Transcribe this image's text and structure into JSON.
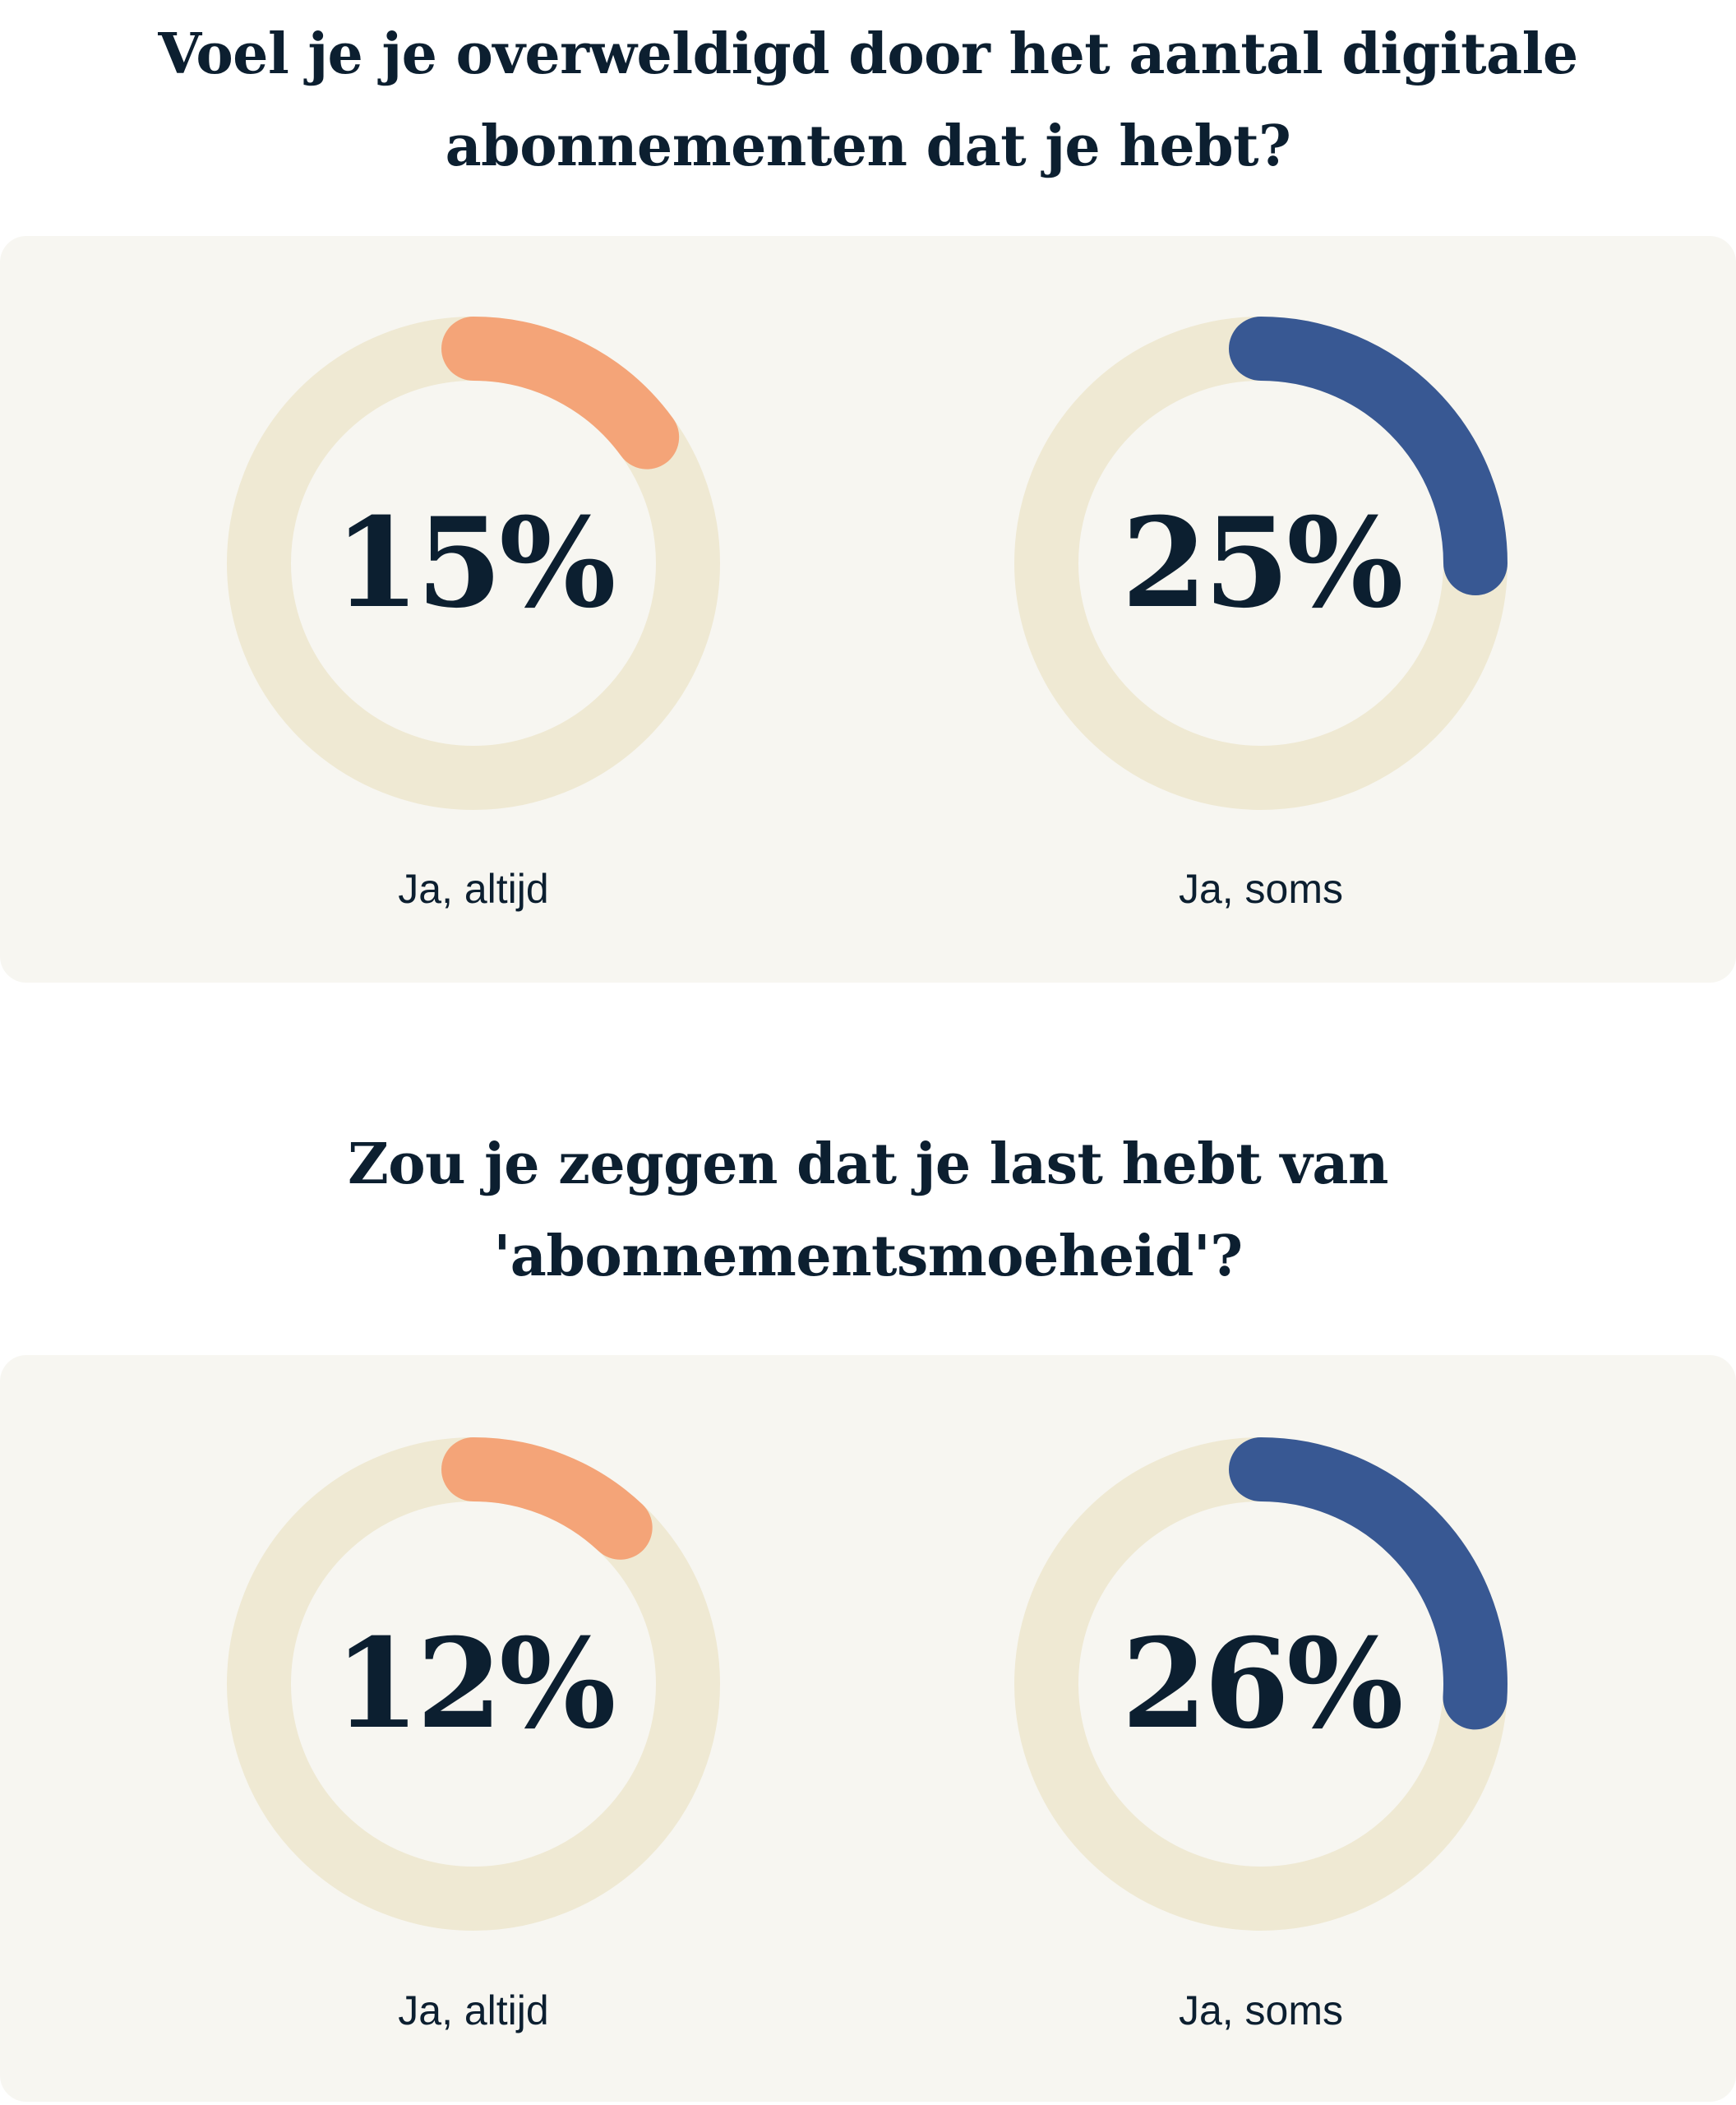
{
  "colors": {
    "background": "#f7f6f1",
    "track": "#efe9d3",
    "altijd": "#f4a478",
    "soms": "#385893",
    "text": "#0c1f30"
  },
  "chart_data": [
    {
      "type": "donut",
      "title": "Voel je je overweldigd door het aantal digitale abonnementen dat je hebt?",
      "items": [
        {
          "label": "Ja, altijd",
          "value": 15,
          "display": "15%",
          "color": "#f4a478"
        },
        {
          "label": "Ja, soms",
          "value": 25,
          "display": "25%",
          "color": "#385893"
        }
      ]
    },
    {
      "type": "donut",
      "title": "Zou je zeggen dat je last hebt van 'abonnementsmoeheid'?",
      "items": [
        {
          "label": "Ja, altijd",
          "value": 12,
          "display": "12%",
          "color": "#f4a478"
        },
        {
          "label": "Ja, soms",
          "value": 26,
          "display": "26%",
          "color": "#385893"
        }
      ]
    }
  ]
}
